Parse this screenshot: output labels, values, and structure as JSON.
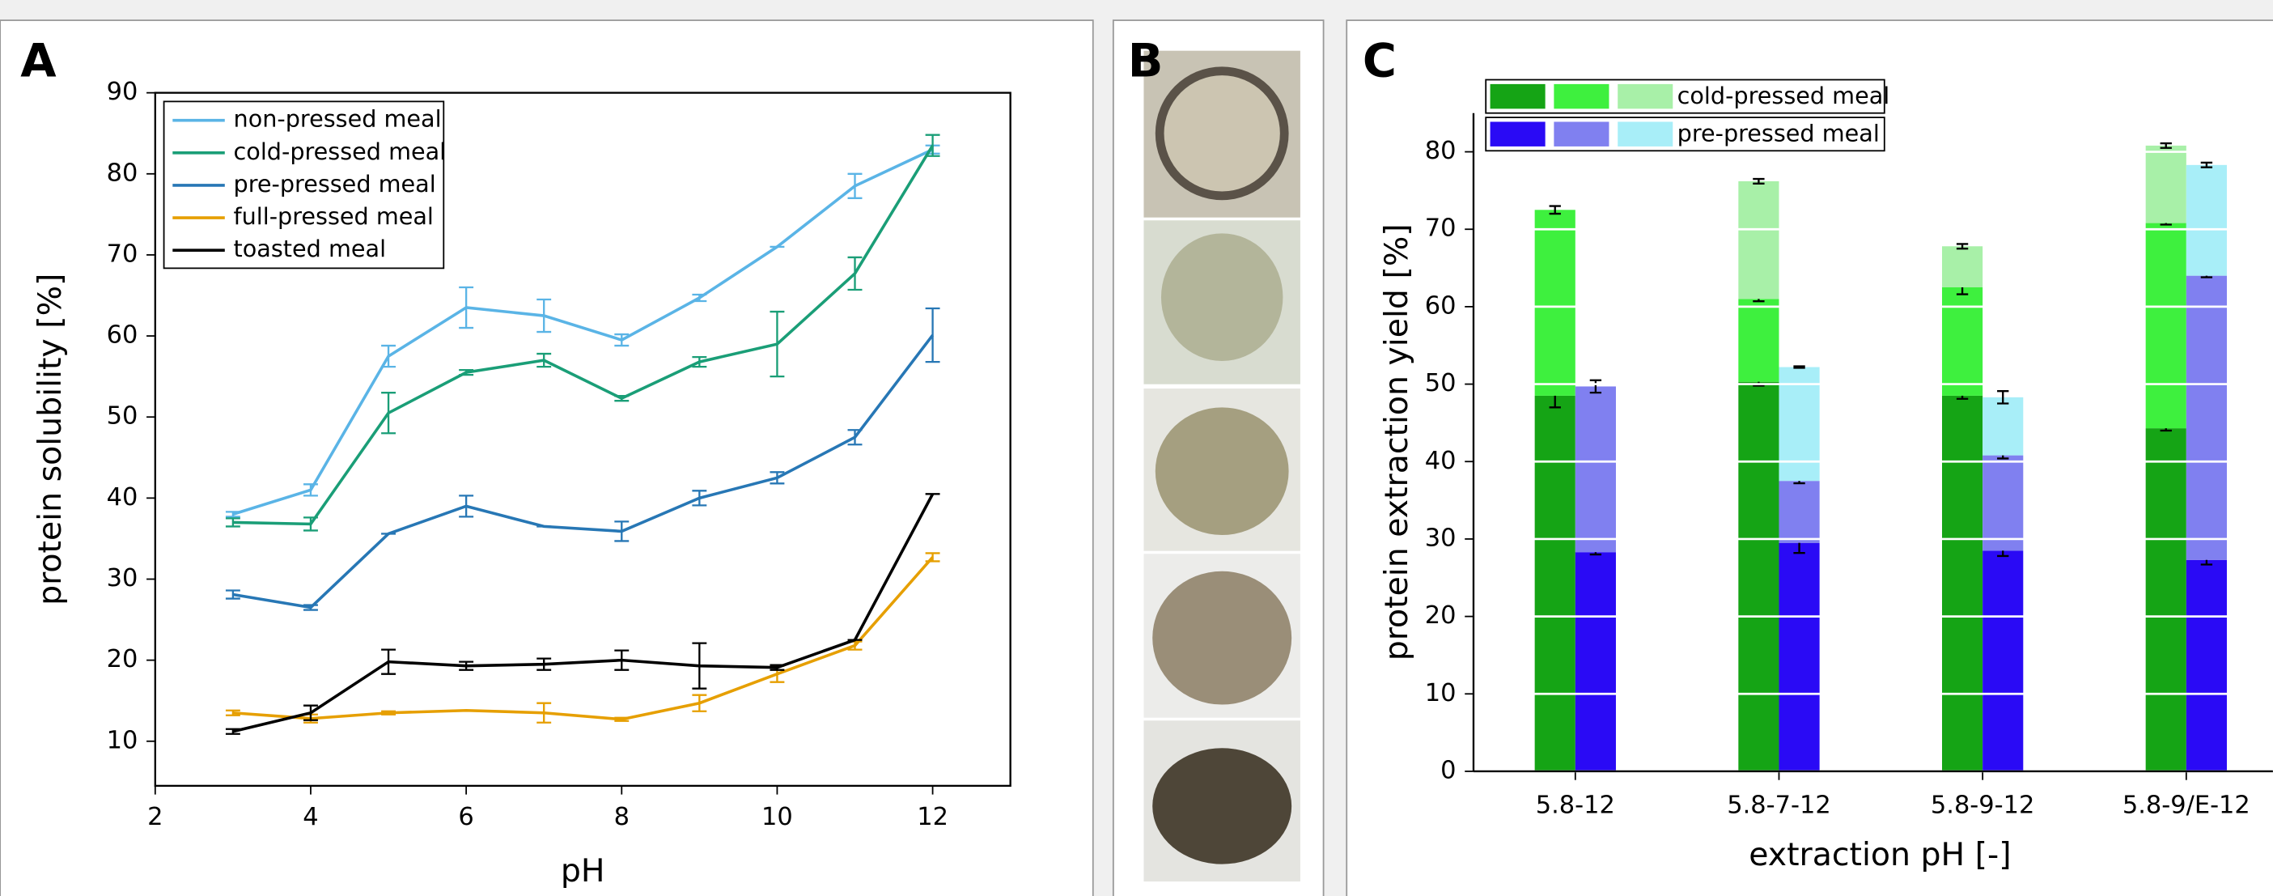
{
  "chart_data": [
    {
      "type": "line",
      "label": "A",
      "xlabel": "pH",
      "ylabel": "protein solubility [%]",
      "x": [
        3,
        4,
        5,
        6,
        7,
        8,
        9,
        10,
        11,
        12
      ],
      "xlim": [
        2,
        13
      ],
      "ylim": [
        4.5,
        90
      ],
      "xticks": [
        2,
        4,
        6,
        8,
        10,
        12
      ],
      "yticks": [
        10,
        20,
        30,
        40,
        50,
        60,
        70,
        80,
        90
      ],
      "legend": "upper left",
      "series": [
        {
          "name": "non-pressed meal",
          "color": "#5ab4e6",
          "values": [
            38,
            41,
            57.5,
            63.5,
            62.5,
            59.5,
            64.7,
            71,
            78.5,
            83
          ],
          "errors": [
            0.3,
            0.7,
            1.3,
            2.5,
            2,
            0.7,
            0.4,
            0,
            1.5,
            0.5
          ]
        },
        {
          "name": "cold-pressed meal",
          "color": "#1a9e77",
          "values": [
            37,
            36.8,
            50.5,
            55.5,
            57,
            52.3,
            56.8,
            59,
            67.7,
            83.5
          ],
          "errors": [
            0.5,
            0.8,
            2.5,
            0.3,
            0.8,
            0.3,
            0.6,
            4,
            2,
            1.3
          ]
        },
        {
          "name": "pre-pressed meal",
          "color": "#2777b5",
          "values": [
            28.1,
            26.5,
            35.6,
            39,
            36.5,
            35.9,
            40,
            42.5,
            47.5,
            60.1
          ],
          "errors": [
            0.5,
            0.3,
            0,
            1.3,
            0,
            1.2,
            0.9,
            0.7,
            0.9,
            3.3
          ]
        },
        {
          "name": "full-pressed meal",
          "color": "#e69f00",
          "values": [
            13.5,
            12.8,
            13.5,
            13.8,
            13.5,
            12.7,
            14.7,
            18.3,
            21.8,
            32.7
          ],
          "errors": [
            0.3,
            0.5,
            0.2,
            0,
            1.2,
            0.2,
            1,
            1,
            0.5,
            0.5
          ]
        },
        {
          "name": "toasted meal",
          "color": "#000000",
          "values": [
            11.2,
            13.5,
            19.8,
            19.3,
            19.5,
            20,
            19.3,
            19.1,
            22.5,
            40.5
          ],
          "errors": [
            0.3,
            0.9,
            1.5,
            0.5,
            0.7,
            1.2,
            2.8,
            0.3,
            0,
            0
          ]
        }
      ]
    },
    {
      "type": "stacked-bar",
      "label": "C",
      "xlabel": "extraction pH [-]",
      "ylabel": "protein extraction yield [%]",
      "categories": [
        "5.8-12",
        "5.8-7-12",
        "5.8-9-12",
        "5.8-9/E-12"
      ],
      "ylim": [
        0,
        85
      ],
      "yticks": [
        0,
        10,
        20,
        30,
        40,
        50,
        60,
        70,
        80
      ],
      "grid": true,
      "grid_color": "#ffffff",
      "legend": "upper left",
      "series": [
        {
          "name": "cold-pressed meal",
          "colors": [
            "#15a415",
            "#3ef03e",
            "#a8f0a8"
          ],
          "values": [
            [
              48.5,
              24,
              null
            ],
            [
              50.3,
              10.7,
              15.2
            ],
            [
              48.5,
              14,
              5.3
            ],
            [
              44.3,
              26.5,
              10
            ]
          ],
          "errors": [
            [
              1.5,
              0.5,
              null
            ],
            [
              0.5,
              0.3,
              0.3
            ],
            [
              0.4,
              0.9,
              0.3
            ],
            [
              0.3,
              0.2,
              0.3
            ]
          ]
        },
        {
          "name": "pre-pressed meal",
          "colors": [
            "#2a0af5",
            "#8080f0",
            "#a8eef8"
          ],
          "values": [
            [
              28.3,
              21.4,
              null
            ],
            [
              29.5,
              8,
              14.7
            ],
            [
              28.5,
              12.3,
              7.5
            ],
            [
              27.3,
              36.7,
              14.3
            ]
          ],
          "errors": [
            [
              0.3,
              0.8,
              null
            ],
            [
              1.3,
              0.3,
              0.1
            ],
            [
              0.7,
              0.4,
              0.8
            ],
            [
              0.6,
              0.2,
              0.3
            ]
          ]
        }
      ]
    }
  ],
  "panel_b": {
    "label": "B"
  }
}
